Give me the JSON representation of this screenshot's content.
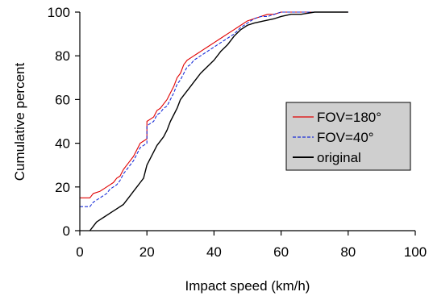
{
  "chart_data": {
    "type": "line",
    "title": "",
    "xlabel": "Impact speed (km/h)",
    "ylabel": "Cumulative percent",
    "xlim": [
      0,
      100
    ],
    "ylim": [
      0,
      100
    ],
    "xticks": [
      0,
      20,
      40,
      60,
      80,
      100
    ],
    "yticks": [
      0,
      20,
      40,
      60,
      80,
      100
    ],
    "grid": false,
    "legend_position": "right-middle",
    "legend_background": "#cfcfcf",
    "series": [
      {
        "name": "FOV=180°",
        "color": "#e00000",
        "style": "solid",
        "x": [
          0,
          3,
          4,
          6,
          8,
          9,
          10,
          11,
          12,
          13,
          14,
          15,
          16,
          17,
          18,
          19,
          20,
          20,
          21,
          22,
          23,
          24,
          25,
          26,
          27,
          28,
          29,
          30,
          31,
          32,
          33,
          34,
          35,
          36,
          37,
          38,
          40,
          42,
          44,
          46,
          48,
          50,
          52,
          54,
          56,
          58,
          60,
          65,
          70,
          75,
          80
        ],
        "y": [
          15,
          15,
          17,
          18,
          20,
          21,
          22,
          24,
          25,
          28,
          30,
          32,
          34,
          37,
          40,
          41,
          42,
          50,
          51,
          52,
          55,
          56,
          58,
          60,
          63,
          66,
          70,
          72,
          76,
          78,
          79,
          80,
          81,
          82,
          83,
          84,
          86,
          88,
          90,
          92,
          94,
          96,
          97,
          98,
          99,
          99,
          100,
          100,
          100,
          100,
          100
        ]
      },
      {
        "name": "FOV=40°",
        "color": "#1a2fd8",
        "style": "dashed",
        "x": [
          0,
          3,
          4,
          6,
          8,
          9,
          10,
          11,
          12,
          13,
          14,
          15,
          16,
          17,
          18,
          19,
          20,
          20,
          21,
          22,
          23,
          24,
          25,
          26,
          27,
          28,
          29,
          30,
          31,
          32,
          33,
          34,
          35,
          36,
          37,
          38,
          40,
          42,
          44,
          46,
          48,
          50,
          52,
          54,
          56,
          58,
          60,
          65,
          70,
          75,
          80
        ],
        "y": [
          11,
          11,
          13,
          15,
          17,
          19,
          20,
          21,
          23,
          26,
          28,
          30,
          32,
          35,
          38,
          39,
          40,
          48,
          49,
          50,
          53,
          54,
          56,
          57,
          60,
          63,
          67,
          69,
          72,
          75,
          76,
          78,
          79,
          80,
          81,
          82,
          84,
          86,
          88,
          90,
          93,
          95,
          97,
          98,
          98,
          99,
          100,
          100,
          100,
          100,
          100
        ]
      },
      {
        "name": "original",
        "color": "#000000",
        "style": "solid",
        "x": [
          3,
          4,
          5,
          7,
          9,
          11,
          13,
          15,
          16,
          17,
          18,
          19,
          20,
          21,
          22,
          23,
          24,
          25,
          26,
          27,
          28,
          29,
          30,
          31,
          32,
          33,
          34,
          35,
          36,
          38,
          40,
          42,
          44,
          46,
          48,
          50,
          52,
          55,
          58,
          60,
          63,
          66,
          70,
          75,
          80
        ],
        "y": [
          0,
          2,
          4,
          6,
          8,
          10,
          12,
          16,
          18,
          20,
          22,
          24,
          30,
          33,
          36,
          39,
          41,
          43,
          46,
          50,
          53,
          56,
          60,
          62,
          64,
          66,
          68,
          70,
          72,
          75,
          78,
          82,
          85,
          89,
          92,
          94,
          95,
          96,
          97,
          98,
          99,
          99,
          100,
          100,
          100
        ]
      }
    ]
  }
}
